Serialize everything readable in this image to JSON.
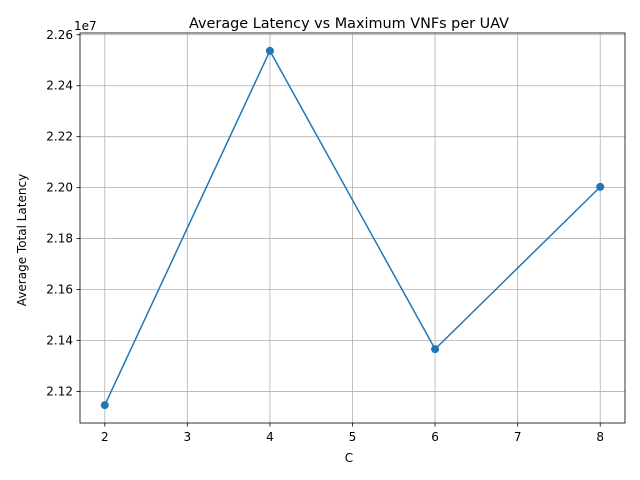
{
  "chart_data": {
    "type": "line",
    "title": "Average Latency vs Maximum VNFs per UAV",
    "xlabel": "C",
    "ylabel": "Average Total Latency",
    "y_offset_label": "1e7",
    "x": [
      2,
      4,
      6,
      8
    ],
    "series": [
      {
        "values": [
          21146000,
          22537000,
          21366000,
          22003000
        ],
        "color": "#1f77b4",
        "marker": "circle"
      }
    ],
    "xlim": [
      1.7,
      8.3
    ],
    "ylim": [
      21076000,
      22607000
    ],
    "xticks": [
      2,
      3,
      4,
      5,
      6,
      7,
      8
    ],
    "xtick_labels": [
      "2",
      "3",
      "4",
      "5",
      "6",
      "7",
      "8"
    ],
    "yticks": [
      21200000,
      21400000,
      21600000,
      21800000,
      22000000,
      22200000,
      22400000,
      22600000
    ],
    "ytick_labels": [
      "2.12",
      "2.14",
      "2.16",
      "2.18",
      "2.20",
      "2.22",
      "2.24",
      "2.26"
    ],
    "grid": true
  }
}
